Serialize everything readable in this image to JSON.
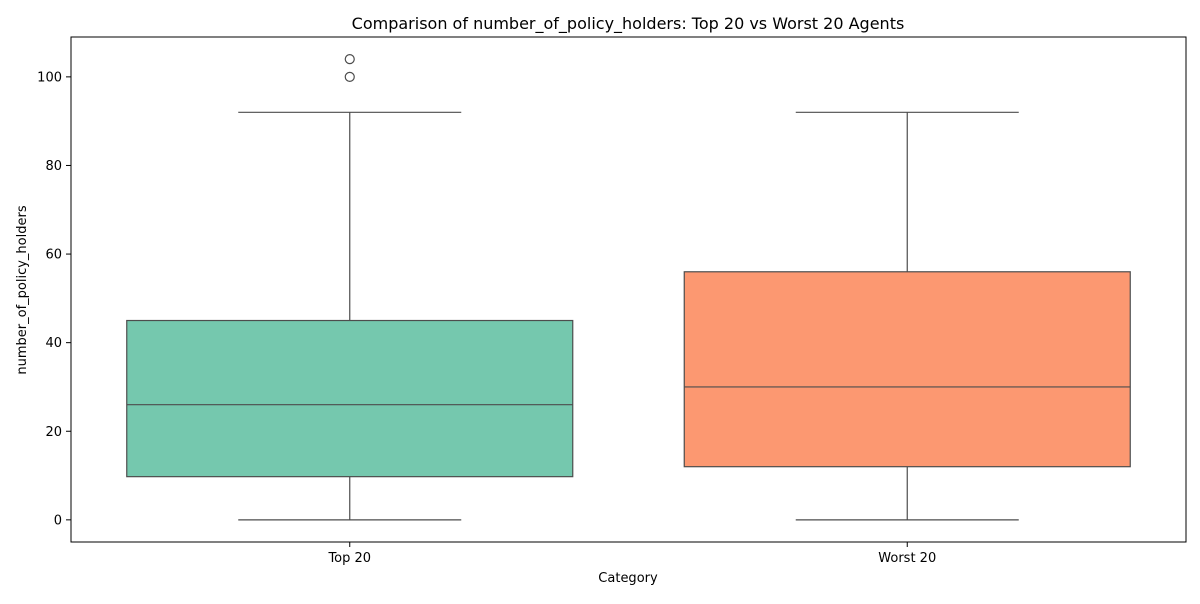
{
  "chart_data": {
    "type": "box",
    "title": "Comparison of number_of_policy_holders: Top 20 vs Worst 20 Agents",
    "xlabel": "Category",
    "ylabel": "number_of_policy_holders",
    "ylim": [
      -5,
      109
    ],
    "yticks": [
      0,
      20,
      40,
      60,
      80,
      100
    ],
    "grid": false,
    "categories": [
      "Top 20",
      "Worst 20"
    ],
    "boxes": [
      {
        "category": "Top 20",
        "whisker_low": 0,
        "q1": 9.75,
        "median": 26,
        "q3": 45,
        "whisker_high": 92,
        "outliers": [
          100,
          104
        ],
        "color": "#66c2a5"
      },
      {
        "category": "Worst 20",
        "whisker_low": 0,
        "q1": 12,
        "median": 30,
        "q3": 56,
        "whisker_high": 92,
        "outliers": [],
        "color": "#fc8d62"
      }
    ],
    "line_color": "#4d4d4d"
  }
}
